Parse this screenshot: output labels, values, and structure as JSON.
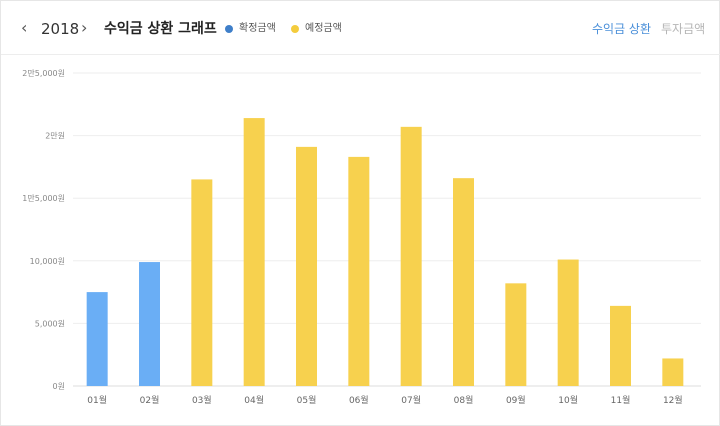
{
  "header": {
    "prev_label": "‹",
    "year": "2018",
    "next_label": "›",
    "title": "수익금 상환 그래프",
    "legend": [
      {
        "label": "확정금액",
        "color": "#3f7fc9"
      },
      {
        "label": "예정금액",
        "color": "#f4cc3d"
      }
    ],
    "tabs": [
      {
        "label": "수익금 상환",
        "active": true
      },
      {
        "label": "투자금액",
        "active": false
      }
    ]
  },
  "chart_data": {
    "type": "bar",
    "categories": [
      "01월",
      "02월",
      "03월",
      "04월",
      "05월",
      "06월",
      "07월",
      "08월",
      "09월",
      "10월",
      "11월",
      "12월"
    ],
    "values": [
      7500,
      9900,
      16500,
      21400,
      19100,
      18300,
      20700,
      16600,
      8200,
      10100,
      6400,
      2200
    ],
    "bar_status": [
      "확정금액",
      "확정금액",
      "예정금액",
      "예정금액",
      "예정금액",
      "예정금액",
      "예정금액",
      "예정금액",
      "예정금액",
      "예정금액",
      "예정금액",
      "예정금액"
    ],
    "status_colors": {
      "확정금액": "#6aaef5",
      "예정금액": "#f7d14e"
    },
    "yticks": [
      0,
      5000,
      10000,
      15000,
      20000,
      25000
    ],
    "ytick_labels": [
      "0원",
      "5,000원",
      "10,000원",
      "1만5,000원",
      "2만원",
      "2만5,000원"
    ],
    "ylim": [
      0,
      25000
    ],
    "grid": true,
    "legend_position": "top"
  }
}
